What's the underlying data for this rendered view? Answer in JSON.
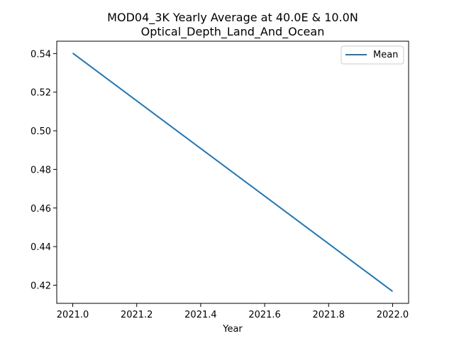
{
  "chart_data": {
    "type": "line",
    "title": "MOD04_3K Yearly Average at 40.0E & 10.0N",
    "subtitle": "Optical_Depth_Land_And_Ocean",
    "xlabel": "Year",
    "ylabel": "",
    "xlim": [
      2020.95,
      2022.05
    ],
    "ylim": [
      0.4106,
      0.5464
    ],
    "x_ticks": [
      "2021.0",
      "2021.2",
      "2021.4",
      "2021.6",
      "2021.8",
      "2022.0"
    ],
    "y_ticks": [
      "0.42",
      "0.44",
      "0.46",
      "0.48",
      "0.50",
      "0.52",
      "0.54"
    ],
    "series": [
      {
        "name": "Mean",
        "x": [
          2021.0,
          2022.0
        ],
        "y": [
          0.5402,
          0.4168
        ],
        "color": "#1f77b4"
      }
    ],
    "legend_position": "upper right",
    "grid": false
  }
}
